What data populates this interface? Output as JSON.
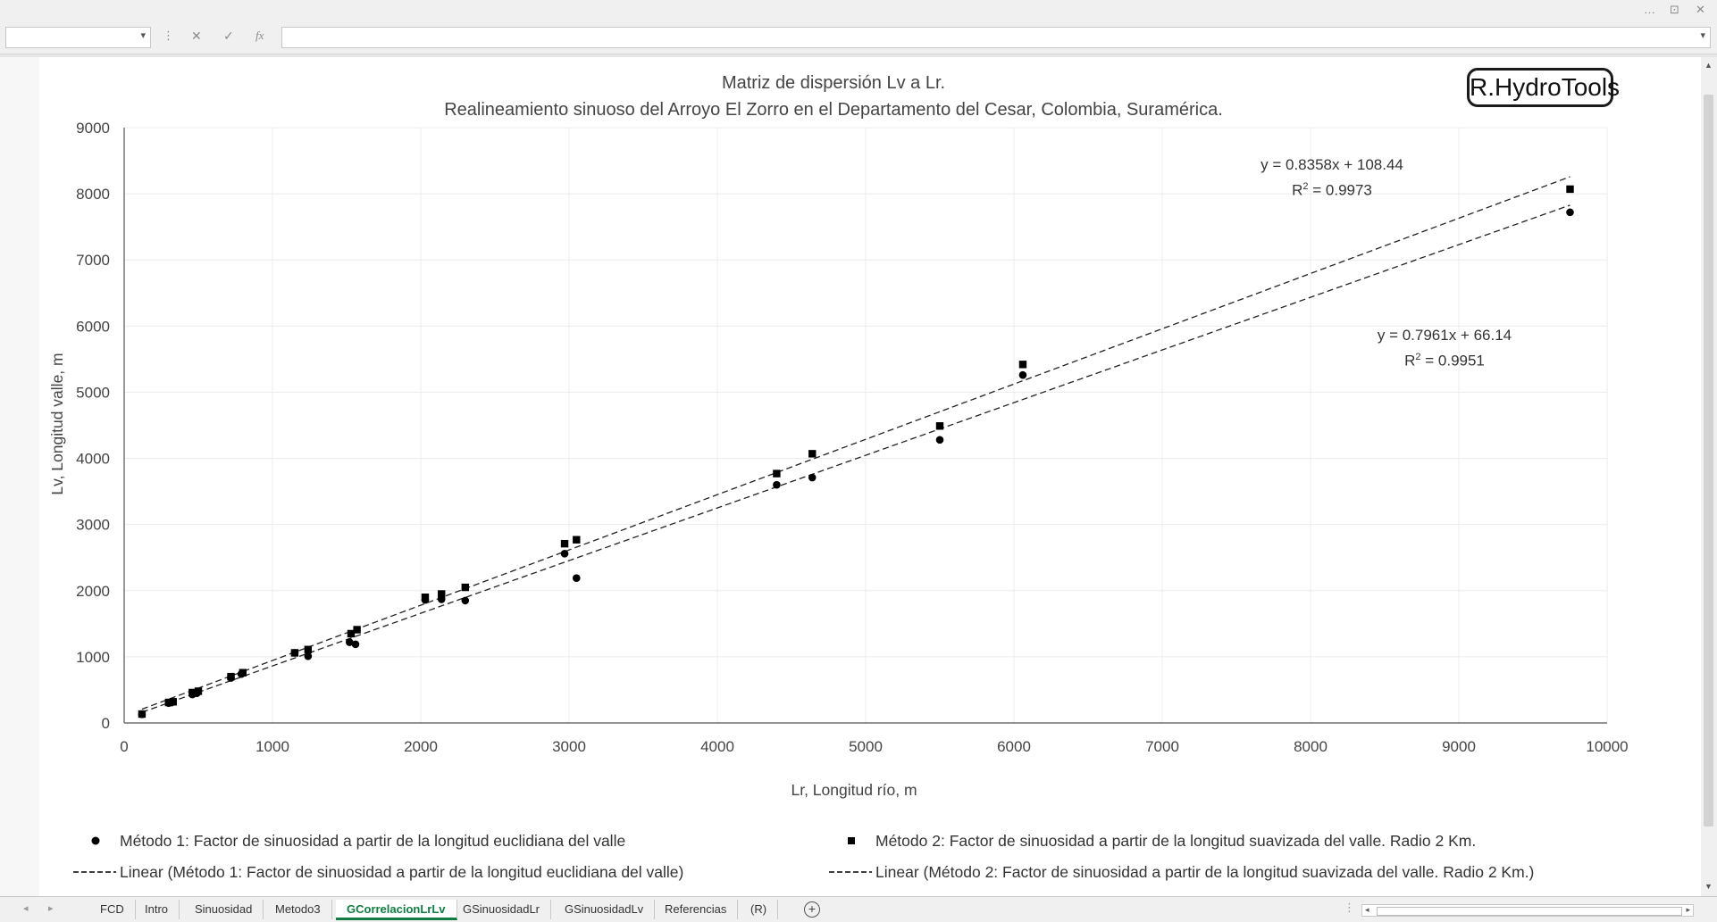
{
  "window": {
    "controls": [
      "…",
      "⊡",
      "✕"
    ]
  },
  "formula_bar": {
    "name_box": "",
    "cancel_icon": "✕",
    "confirm_icon": "✓",
    "fx_label": "fx",
    "formula": ""
  },
  "watermark": "R.HydroTools",
  "chart_data": {
    "type": "scatter",
    "title": "Matriz de dispersión Lv a Lr.",
    "subtitle": "Realineamiento sinuoso del Arroyo El Zorro en el Departamento del Cesar, Colombia, Suramérica.",
    "xlabel": "Lr, Longitud río, m",
    "ylabel": "Lv, Longitud valle, m",
    "xlim": [
      0,
      10000
    ],
    "ylim": [
      0,
      9000
    ],
    "xticks": [
      "0",
      "1000",
      "2000",
      "3000",
      "4000",
      "5000",
      "6000",
      "7000",
      "8000",
      "9000",
      "10000"
    ],
    "yticks": [
      "0",
      "1000",
      "2000",
      "3000",
      "4000",
      "5000",
      "6000",
      "7000",
      "8000",
      "9000"
    ],
    "grid": true,
    "legend_position": "bottom",
    "series": [
      {
        "name": "Método 1: Factor de sinuosidad a partir de la longitud euclidiana del valle",
        "marker": "circle",
        "points": [
          [
            120,
            130
          ],
          [
            300,
            300
          ],
          [
            320,
            310
          ],
          [
            460,
            430
          ],
          [
            490,
            450
          ],
          [
            720,
            680
          ],
          [
            790,
            740
          ],
          [
            1150,
            1060
          ],
          [
            1240,
            1010
          ],
          [
            1520,
            1220
          ],
          [
            1560,
            1190
          ],
          [
            2030,
            1860
          ],
          [
            2140,
            1870
          ],
          [
            2300,
            1850
          ],
          [
            2970,
            2560
          ],
          [
            3050,
            2190
          ],
          [
            4400,
            3600
          ],
          [
            4640,
            3710
          ],
          [
            5500,
            4280
          ],
          [
            6060,
            5260
          ],
          [
            9750,
            7720
          ]
        ],
        "trendline": {
          "name": "Linear (Método 1: Factor de sinuosidad a partir de la longitud euclidiana del valle)",
          "slope": 0.7961,
          "intercept": 66.14,
          "equation": "y = 0.7961x + 66.14",
          "r2_label": "R",
          "r2_value": " = 0.9951"
        }
      },
      {
        "name": "Método 2: Factor de sinuosidad a partir de la longitud suavizada del valle. Radio 2 Km.",
        "marker": "square",
        "points": [
          [
            120,
            135
          ],
          [
            300,
            310
          ],
          [
            330,
            320
          ],
          [
            460,
            460
          ],
          [
            500,
            480
          ],
          [
            720,
            700
          ],
          [
            800,
            760
          ],
          [
            1150,
            1060
          ],
          [
            1240,
            1110
          ],
          [
            1530,
            1350
          ],
          [
            1570,
            1410
          ],
          [
            2030,
            1900
          ],
          [
            2140,
            1950
          ],
          [
            2300,
            2050
          ],
          [
            2970,
            2710
          ],
          [
            3050,
            2770
          ],
          [
            4400,
            3770
          ],
          [
            4640,
            4070
          ],
          [
            5500,
            4490
          ],
          [
            6060,
            5420
          ],
          [
            9750,
            8070
          ]
        ],
        "trendline": {
          "name": "Linear (Método 2: Factor de sinuosidad a partir de la longitud suavizada del valle. Radio 2 Km.)",
          "slope": 0.8358,
          "intercept": 108.44,
          "equation": "y = 0.8358x + 108.44",
          "r2_label": "R",
          "r2_value": " = 0.9973"
        }
      }
    ]
  },
  "sheet_tabs": [
    {
      "label": "FCD",
      "active": false
    },
    {
      "label": "Intro",
      "active": false
    },
    {
      "label": "Sinuosidad",
      "active": false
    },
    {
      "label": "Metodo3",
      "active": false
    },
    {
      "label": "GCorrelacionLrLv",
      "active": true
    },
    {
      "label": "GSinuosidadLr",
      "active": false
    },
    {
      "label": "GSinuosidadLv",
      "active": false
    },
    {
      "label": "Referencias",
      "active": false
    },
    {
      "label": "(R)",
      "active": false
    }
  ],
  "add_sheet_icon": "+"
}
